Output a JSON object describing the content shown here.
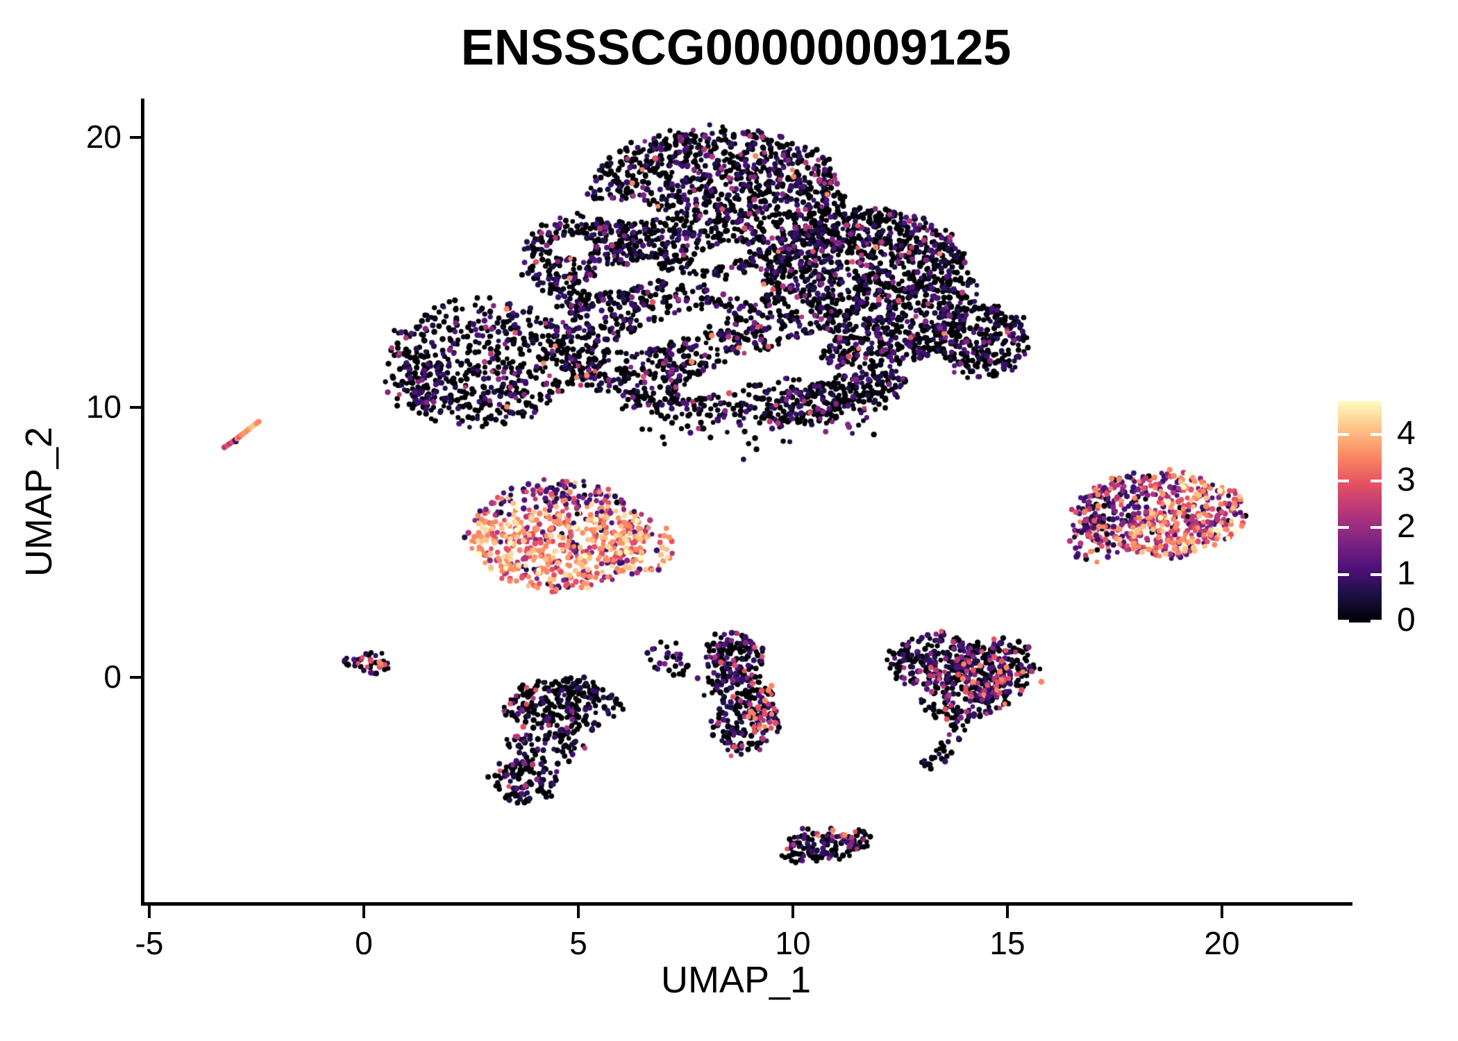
{
  "title": "ENSSSCG00000009125",
  "axes": {
    "x_label": "UMAP_1",
    "y_label": "UMAP_2",
    "x_ticks": [
      "-5",
      "0",
      "5",
      "10",
      "15",
      "20"
    ],
    "x_tick_values": [
      -5,
      0,
      5,
      10,
      15,
      20
    ],
    "y_ticks": [
      "20",
      "10",
      "0"
    ],
    "y_tick_values": [
      20,
      10,
      0
    ]
  },
  "legend": {
    "tick_labels": [
      "4",
      "3",
      "2",
      "1",
      "0"
    ],
    "tick_values": [
      4,
      3,
      2,
      1,
      0
    ],
    "colormap": "magma",
    "value_max": 4.73,
    "gradient_stops": [
      [
        0,
        "#000004"
      ],
      [
        0.125,
        "#1c1044"
      ],
      [
        0.25,
        "#4f127b"
      ],
      [
        0.375,
        "#812581"
      ],
      [
        0.5,
        "#b5367a"
      ],
      [
        0.625,
        "#e55064"
      ],
      [
        0.75,
        "#fb8761"
      ],
      [
        0.875,
        "#fec287"
      ],
      [
        1,
        "#fcfdbf"
      ]
    ]
  },
  "chart_data": {
    "type": "scatter",
    "title": "ENSSSCG00000009125",
    "xlabel": "UMAP_1",
    "ylabel": "UMAP_2",
    "xlim": [
      -6.5,
      22.5
    ],
    "ylim": [
      -8.4,
      21.4
    ],
    "x_ticks": [
      -5,
      0,
      5,
      10,
      15,
      20
    ],
    "y_ticks": [
      0,
      10,
      20
    ],
    "grid": false,
    "color_scale": {
      "name": "magma",
      "domain": [
        0,
        4.73
      ],
      "legend_ticks": [
        0,
        1,
        2,
        3,
        4
      ]
    },
    "point_radius_px": [
      3.3,
      4.4
    ],
    "seed": 1337,
    "palettes": {
      "darkPal": [
        [
          "#000004",
          0.6
        ],
        [
          "#07051a",
          0.12
        ],
        [
          "#1c1044",
          0.1
        ],
        [
          "#35106b",
          0.07
        ],
        [
          "#4f127b",
          0.05
        ],
        [
          "#812581",
          0.03
        ],
        [
          "#b5367a",
          0.018
        ],
        [
          "#e55064",
          0.007
        ],
        [
          "#fb8761",
          0.005
        ]
      ],
      "fPal": [
        [
          "#000004",
          0.66
        ],
        [
          "#07051a",
          0.1
        ],
        [
          "#1c1044",
          0.08
        ],
        [
          "#35106b",
          0.06
        ],
        [
          "#4f127b",
          0.05
        ],
        [
          "#812581",
          0.025
        ],
        [
          "#b5367a",
          0.015
        ],
        [
          "#e55064",
          0.01
        ]
      ],
      "midPal": [
        [
          "#000004",
          0.52
        ],
        [
          "#07051a",
          0.1
        ],
        [
          "#1c1044",
          0.1
        ],
        [
          "#35106b",
          0.09
        ],
        [
          "#4f127b",
          0.08
        ],
        [
          "#812581",
          0.05
        ],
        [
          "#b5367a",
          0.035
        ],
        [
          "#e55064",
          0.02
        ],
        [
          "#fb8761",
          0.005
        ]
      ],
      "jPal": [
        [
          "#000004",
          0.55
        ],
        [
          "#1c1044",
          0.12
        ],
        [
          "#35106b",
          0.1
        ],
        [
          "#4f127b",
          0.1
        ],
        [
          "#812581",
          0.07
        ],
        [
          "#b5367a",
          0.04
        ],
        [
          "#e55064",
          0.02
        ]
      ],
      "originPal": [
        [
          "#000004",
          0.55
        ],
        [
          "#07051a",
          0.1
        ],
        [
          "#1c1044",
          0.1
        ],
        [
          "#35106b",
          0.08
        ],
        [
          "#4f127b",
          0.07
        ],
        [
          "#812581",
          0.04
        ],
        [
          "#b5367a",
          0.03
        ],
        [
          "#e55064",
          0.03
        ]
      ],
      "orangePal": [
        [
          "#1c1044",
          0.02
        ],
        [
          "#35106b",
          0.03
        ],
        [
          "#4f127b",
          0.05
        ],
        [
          "#812581",
          0.07
        ],
        [
          "#b5367a",
          0.11
        ],
        [
          "#e55064",
          0.16
        ],
        [
          "#fb8761",
          0.22
        ],
        [
          "#fd9567",
          0.12
        ],
        [
          "#fec287",
          0.14
        ],
        [
          "#fcdca4",
          0.05
        ],
        [
          "#fcfdbf",
          0.03
        ]
      ],
      "orangeDarkTop": [
        [
          "#000004",
          0.1
        ],
        [
          "#1c1044",
          0.15
        ],
        [
          "#35106b",
          0.2
        ],
        [
          "#4f127b",
          0.2
        ],
        [
          "#812581",
          0.15
        ],
        [
          "#b5367a",
          0.1
        ],
        [
          "#e55064",
          0.05
        ],
        [
          "#fb8761",
          0.05
        ]
      ],
      "rightPal": [
        [
          "#000004",
          0.04
        ],
        [
          "#1c1044",
          0.05
        ],
        [
          "#35106b",
          0.06
        ],
        [
          "#4f127b",
          0.09
        ],
        [
          "#812581",
          0.13
        ],
        [
          "#b5367a",
          0.16
        ],
        [
          "#e55064",
          0.16
        ],
        [
          "#fb8761",
          0.15
        ],
        [
          "#fd9567",
          0.08
        ],
        [
          "#fec287",
          0.06
        ],
        [
          "#fcfdbf",
          0.02
        ]
      ],
      "rightDarkPal": [
        [
          "#000004",
          0.12
        ],
        [
          "#1c1044",
          0.16
        ],
        [
          "#35106b",
          0.18
        ],
        [
          "#4f127b",
          0.18
        ],
        [
          "#812581",
          0.14
        ],
        [
          "#b5367a",
          0.1
        ],
        [
          "#e55064",
          0.06
        ],
        [
          "#fb8761",
          0.06
        ]
      ],
      "warmAccent": [
        [
          "#b5367a",
          0.35
        ],
        [
          "#e55064",
          0.4
        ],
        [
          "#fb8761",
          0.25
        ]
      ]
    },
    "clusters": [
      {
        "name": "main-upper-mass",
        "palette": "darkPal",
        "lobes": [
          {
            "cx": 8.2,
            "cy": 17.6,
            "rx": 3.05,
            "ry": 2.75,
            "n": 1350
          },
          {
            "cx": 5.1,
            "cy": 15.4,
            "rx": 1.35,
            "ry": 1.8,
            "n": 380
          },
          {
            "cx": 2.7,
            "cy": 11.6,
            "rx": 2.15,
            "ry": 2.35,
            "n": 520
          },
          {
            "cx": 1.2,
            "cy": 10.8,
            "rx": 0.8,
            "ry": 1.0,
            "n": 60
          },
          {
            "cx": 7.0,
            "cy": 12.4,
            "rx": 2.6,
            "ry": 2.3,
            "n": 800
          },
          {
            "cx": 11.8,
            "cy": 14.4,
            "rx": 2.45,
            "ry": 2.95,
            "n": 1350
          },
          {
            "cx": 14.4,
            "cy": 12.5,
            "rx": 1.05,
            "ry": 1.35,
            "n": 260
          },
          {
            "cx": 9.3,
            "cy": 10.2,
            "rx": 3.3,
            "ry": 0.85,
            "n": 200
          },
          {
            "cx": 10.9,
            "cy": 10.4,
            "rx": 1.9,
            "ry": 0.6,
            "rot": 25,
            "n": 220
          },
          {
            "cx": 9.0,
            "cy": 9.3,
            "rx": 3.0,
            "ry": 0.8,
            "n": 50,
            "jitter": 0.3
          }
        ],
        "voids": [
          {
            "cx": 7.2,
            "cy": 12.9,
            "rx": 1.5,
            "ry": 0.4,
            "rot": 30
          },
          {
            "cx": 8.8,
            "cy": 11.3,
            "rx": 1.7,
            "ry": 0.45,
            "rot": 32
          },
          {
            "cx": 6.0,
            "cy": 14.8,
            "rx": 1.0,
            "ry": 0.4,
            "rot": 25
          },
          {
            "cx": 8.3,
            "cy": 15.6,
            "rx": 0.8,
            "ry": 0.35,
            "rot": 30
          },
          {
            "cx": 10.3,
            "cy": 12.3,
            "rx": 0.8,
            "ry": 0.35,
            "rot": 30
          },
          {
            "cx": 4.85,
            "cy": 15.95,
            "rx": 0.55,
            "ry": 0.4,
            "rot": 0
          },
          {
            "cx": 5.85,
            "cy": 17.3,
            "rx": 0.4,
            "ry": 1.1,
            "rot": 80
          }
        ]
      },
      {
        "name": "left-mid-high-expression",
        "palette": "orangePal",
        "zones": [
          {
            "y_min": 6.5,
            "prob": 0.75,
            "palette": "orangeDarkTop"
          },
          {
            "y_min": 6.0,
            "y_max": 6.5,
            "prob": 0.3,
            "palette": "orangeDarkTop"
          }
        ],
        "lobes": [
          {
            "cx": 4.55,
            "cy": 5.2,
            "rx": 2.05,
            "ry": 2.0,
            "n": 640
          },
          {
            "cx": 6.35,
            "cy": 4.8,
            "rx": 0.8,
            "ry": 0.9,
            "n": 80
          }
        ]
      },
      {
        "name": "right-high-expression",
        "palette": "rightPal",
        "zones": [
          {
            "x_max": 18.3,
            "y_min": 6.0,
            "prob": 0.7,
            "palette": "rightDarkPal"
          },
          {
            "x_max": 17.6,
            "prob": 0.45,
            "palette": "rightDarkPal"
          }
        ],
        "lobes": [
          {
            "cx": 18.55,
            "cy": 6.05,
            "rx": 1.95,
            "ry": 1.55,
            "n": 580
          },
          {
            "cx": 16.95,
            "cy": 5.2,
            "rx": 0.55,
            "ry": 0.85,
            "n": 50
          }
        ]
      },
      {
        "name": "small-streak-left",
        "point_r": 4.2,
        "points": [
          [
            -3.25,
            8.52,
            "#b5367a"
          ],
          [
            -3.18,
            8.6,
            "#e55064"
          ],
          [
            -3.12,
            8.66,
            "#b5367a"
          ],
          [
            -3.06,
            8.72,
            "#e55064"
          ],
          [
            -3.0,
            8.79,
            "#4f127b"
          ],
          [
            -2.98,
            8.74,
            "#1c1044"
          ],
          [
            -2.95,
            8.85,
            "#fb8761"
          ],
          [
            -2.9,
            8.91,
            "#e55064"
          ],
          [
            -2.86,
            8.97,
            "#fb8761"
          ],
          [
            -2.8,
            9.04,
            "#fd9567"
          ],
          [
            -2.74,
            9.11,
            "#fb8761"
          ],
          [
            -2.68,
            9.19,
            "#fd9567"
          ],
          [
            -2.62,
            9.27,
            "#fec287"
          ],
          [
            -2.56,
            9.34,
            "#fec287"
          ],
          [
            -2.5,
            9.41,
            "#fd9567"
          ],
          [
            -2.45,
            9.47,
            "#fb8761"
          ]
        ]
      },
      {
        "name": "origin-small-cluster",
        "palette": "originPal",
        "zones": [
          {
            "x_min": -0.15,
            "x_max": 0.45,
            "y_min": 0.35,
            "y_max": 0.75,
            "prob": 0.35,
            "palette": "warmAccent"
          }
        ],
        "lobes": [
          {
            "cx": 0.15,
            "cy": 0.55,
            "rx": 0.6,
            "ry": 0.3,
            "rot": -10,
            "n": 42
          }
        ]
      },
      {
        "name": "lower-left-cluster",
        "palette": "fPal",
        "lobes": [
          {
            "cx": 4.6,
            "cy": -1.0,
            "rx": 1.3,
            "ry": 1.0,
            "n": 260
          },
          {
            "cx": 4.2,
            "cy": -2.6,
            "rx": 0.95,
            "ry": 0.65,
            "n": 70
          },
          {
            "cx": 3.75,
            "cy": -3.9,
            "rx": 0.75,
            "ry": 0.8,
            "n": 100
          }
        ]
      },
      {
        "name": "small-comma-cluster",
        "palette": "midPal",
        "lobes": [
          {
            "cx": 7.05,
            "cy": 0.75,
            "rx": 0.35,
            "ry": 0.5,
            "n": 22
          },
          {
            "cx": 7.5,
            "cy": 0.1,
            "rx": 0.3,
            "ry": 0.35,
            "n": 8,
            "jitter": 0.1
          }
        ]
      },
      {
        "name": "tall-mid-cluster",
        "palette": "midPal",
        "zones": [
          {
            "x_min": 8.95,
            "y_min": -2.3,
            "y_max": -0.2,
            "prob": 0.3,
            "palette": "warmAccent"
          },
          {
            "x_min": 9.1,
            "y_min": 0.8,
            "prob": 0.2,
            "palette": "warmAccent"
          }
        ],
        "lobes": [
          {
            "cx": 8.7,
            "cy": 0.9,
            "rx": 0.7,
            "ry": 0.75,
            "n": 110
          },
          {
            "cx": 8.6,
            "cy": -0.4,
            "rx": 0.6,
            "ry": 0.75,
            "n": 90
          },
          {
            "cx": 8.9,
            "cy": -1.9,
            "rx": 0.75,
            "ry": 0.85,
            "n": 120
          },
          {
            "cx": 9.35,
            "cy": -1.0,
            "rx": 0.4,
            "ry": 0.6,
            "n": 40
          }
        ]
      },
      {
        "name": "right-kidney-cluster",
        "palette": "midPal",
        "zones": [
          {
            "y_min": -1.1,
            "y_max": 0.4,
            "prob": 0.12,
            "palette": "warmAccent"
          }
        ],
        "lobes": [
          {
            "cx": 13.3,
            "cy": 0.6,
            "rx": 1.0,
            "ry": 1.05,
            "n": 230
          },
          {
            "cx": 14.75,
            "cy": 0.35,
            "rx": 0.95,
            "ry": 1.0,
            "n": 230
          },
          {
            "cx": 14.0,
            "cy": -0.9,
            "rx": 1.05,
            "ry": 0.6,
            "n": 110
          },
          {
            "cx": 13.35,
            "cy": -3.2,
            "rx": 0.3,
            "ry": 0.16,
            "n": 12
          }
        ],
        "streaks": [
          {
            "x1": 13.9,
            "y1": -1.6,
            "x2": 13.35,
            "y2": -3.0,
            "w": 0.14,
            "n": 26
          }
        ]
      },
      {
        "name": "bottom-elongated-cluster",
        "palette": "jPal",
        "zones": [
          {
            "y_min": -5.95,
            "x_min": 10.4,
            "prob": 0.4,
            "palette": "warmAccent"
          }
        ],
        "lobes": [
          {
            "cx": 10.75,
            "cy": -6.2,
            "rx": 1.05,
            "ry": 0.55,
            "rot": 14,
            "n": 140
          }
        ]
      }
    ]
  }
}
